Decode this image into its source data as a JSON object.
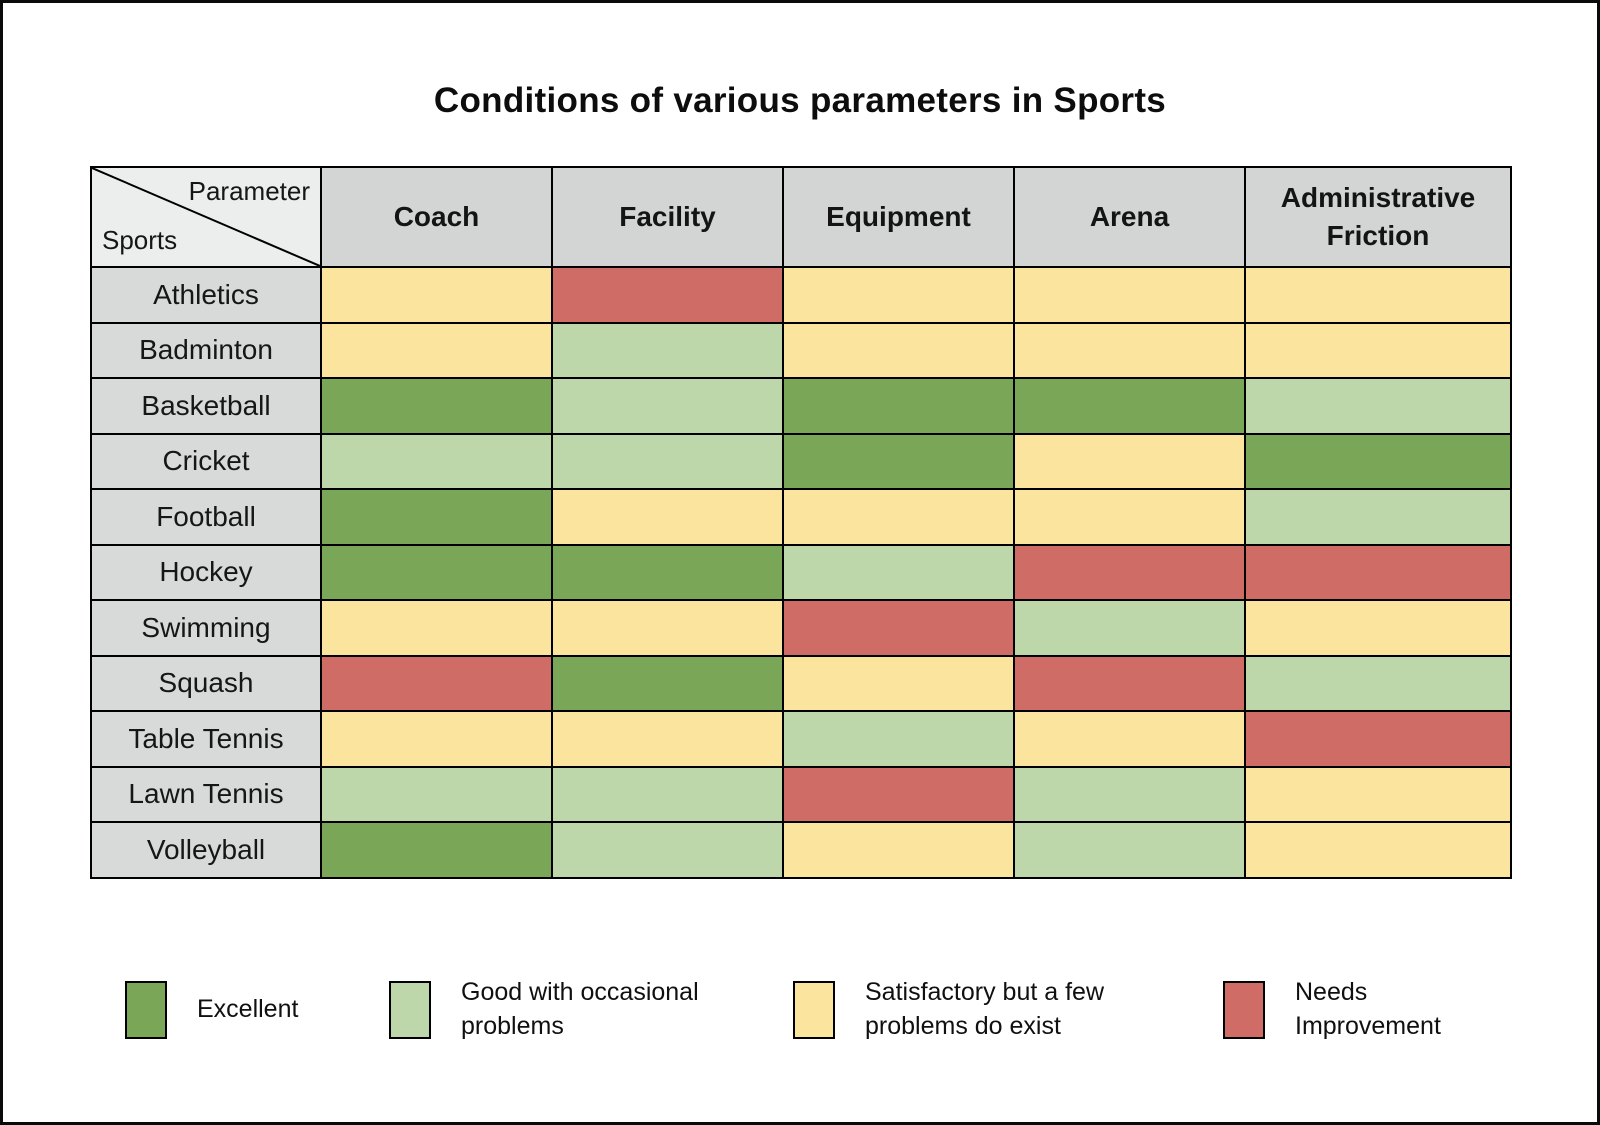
{
  "chart_data": {
    "type": "heatmap",
    "title": "Conditions of various parameters in Sports",
    "columns": [
      "Coach",
      "Facility",
      "Equipment",
      "Arena",
      "Administrative Friction"
    ],
    "rows": [
      "Athletics",
      "Badminton",
      "Basketball",
      "Cricket",
      "Football",
      "Hockey",
      "Swimming",
      "Squash",
      "Table Tennis",
      "Lawn Tennis",
      "Volleyball"
    ],
    "values": [
      [
        "satisfactory",
        "needs-improvement",
        "satisfactory",
        "satisfactory",
        "satisfactory"
      ],
      [
        "satisfactory",
        "good",
        "satisfactory",
        "satisfactory",
        "satisfactory"
      ],
      [
        "excellent",
        "good",
        "excellent",
        "excellent",
        "good"
      ],
      [
        "good",
        "good",
        "excellent",
        "satisfactory",
        "excellent"
      ],
      [
        "excellent",
        "satisfactory",
        "satisfactory",
        "satisfactory",
        "good"
      ],
      [
        "excellent",
        "excellent",
        "good",
        "needs-improvement",
        "needs-improvement"
      ],
      [
        "satisfactory",
        "satisfactory",
        "needs-improvement",
        "good",
        "satisfactory"
      ],
      [
        "needs-improvement",
        "excellent",
        "satisfactory",
        "needs-improvement",
        "good"
      ],
      [
        "satisfactory",
        "satisfactory",
        "good",
        "satisfactory",
        "needs-improvement"
      ],
      [
        "good",
        "good",
        "needs-improvement",
        "good",
        "satisfactory"
      ],
      [
        "excellent",
        "good",
        "satisfactory",
        "good",
        "satisfactory"
      ]
    ],
    "legend_position": "bottom",
    "grid": true
  },
  "corner": {
    "parameter_label": "Parameter",
    "sports_label": "Sports"
  },
  "legend": {
    "items": [
      {
        "key": "excellent",
        "label": "Excellent",
        "color": "#79a657"
      },
      {
        "key": "good",
        "label": "Good with occasional problems",
        "color": "#bdd6aa"
      },
      {
        "key": "satisfactory",
        "label": "Satisfactory but a few problems do exist",
        "color": "#fbe49d"
      },
      {
        "key": "needs-improvement",
        "label": "Needs Improvement",
        "color": "#d06c66"
      }
    ]
  },
  "colors": {
    "excellent": "#79a657",
    "good": "#bdd6aa",
    "satisfactory": "#fbe49d",
    "needs_improvement": "#d06c66",
    "header_bg": "#d3d4d4",
    "row_label_bg": "#d8d9d9",
    "corner_bg": "#eceded",
    "border": "#000000",
    "background": "#ffffff"
  }
}
